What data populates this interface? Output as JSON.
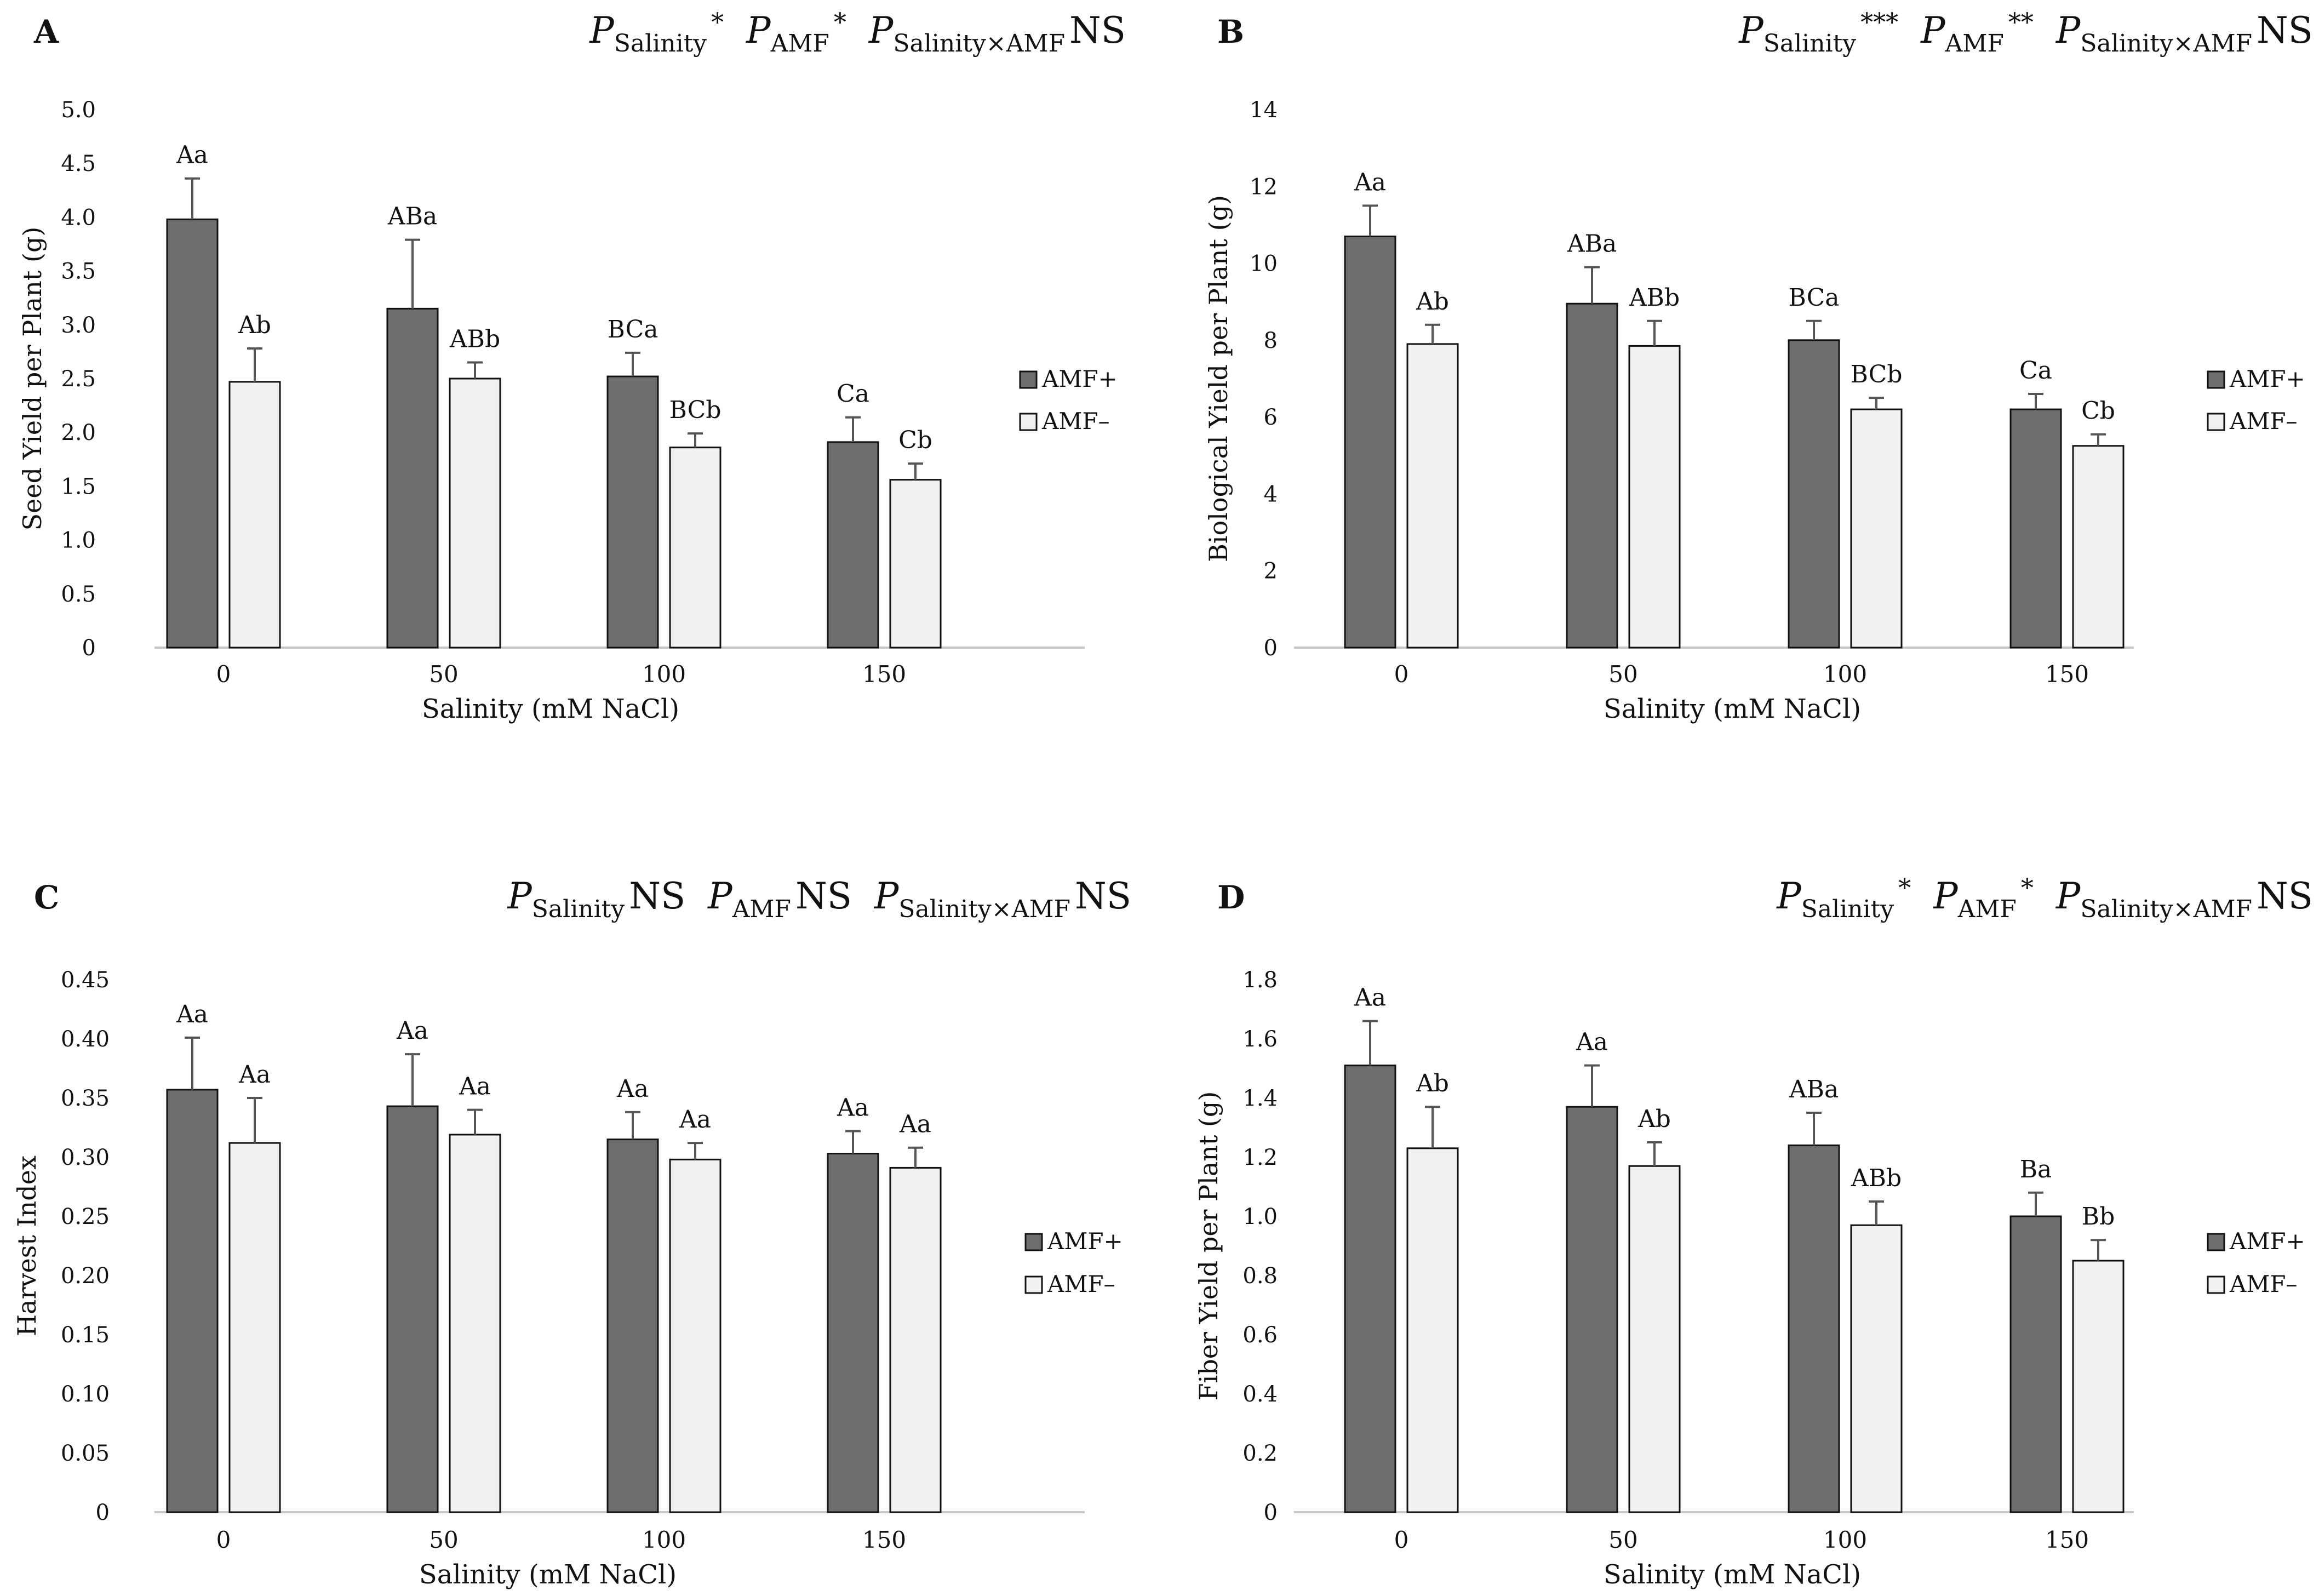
{
  "x_axis_title": "Salinity (mM NaCl)",
  "series_names": [
    "AMF+",
    "AMF–"
  ],
  "colors": {
    "amf_plus": "#6e6e6e",
    "amf_minus": "#f1f1f1",
    "bar_stroke": "#111111",
    "axis": "#c8c8c8",
    "error": "#555555"
  },
  "chart_data": [
    {
      "panel": "A",
      "type": "bar",
      "stats": [
        {
          "base": "P",
          "sub": "Salinity",
          "sig": "*"
        },
        {
          "base": "P",
          "sub": "AMF",
          "sig": "*"
        },
        {
          "base": "P",
          "sub": "Salinity×AMF",
          "sig": "NS"
        }
      ],
      "ylabel": "Seed Yield per Plant (g)",
      "xlabel": "Salinity (mM NaCl)",
      "categories": [
        "0",
        "50",
        "100",
        "150"
      ],
      "ylim": [
        0,
        5.0
      ],
      "yticks": [
        "0",
        "0.5",
        "1.0",
        "1.5",
        "2.0",
        "2.5",
        "3.0",
        "3.5",
        "4.0",
        "4.5",
        "5.0"
      ],
      "yticks_values": [
        0,
        0.5,
        1.0,
        1.5,
        2.0,
        2.5,
        3.0,
        3.5,
        4.0,
        4.5,
        5.0
      ],
      "grid": false,
      "legend": "right",
      "series": [
        {
          "name": "AMF+",
          "values": [
            3.98,
            3.15,
            2.52,
            1.91
          ],
          "errors": [
            0.38,
            0.64,
            0.22,
            0.23
          ],
          "labels": [
            "Aa",
            "ABa",
            "BCa",
            "Ca"
          ]
        },
        {
          "name": "AMF–",
          "values": [
            2.47,
            2.5,
            1.86,
            1.56
          ],
          "errors": [
            0.31,
            0.15,
            0.13,
            0.15
          ],
          "labels": [
            "Ab",
            "ABb",
            "BCb",
            "Cb"
          ]
        }
      ]
    },
    {
      "panel": "B",
      "type": "bar",
      "stats": [
        {
          "base": "P",
          "sub": "Salinity",
          "sig": "***"
        },
        {
          "base": "P",
          "sub": "AMF",
          "sig": "**"
        },
        {
          "base": "P",
          "sub": "Salinity×AMF",
          "sig": "NS"
        }
      ],
      "ylabel": "Biological Yield per Plant (g)",
      "xlabel": "Salinity (mM NaCl)",
      "categories": [
        "0",
        "50",
        "100",
        "150"
      ],
      "ylim": [
        0,
        14
      ],
      "yticks": [
        "0",
        "2",
        "4",
        "6",
        "8",
        "10",
        "12",
        "14"
      ],
      "yticks_values": [
        0,
        2,
        4,
        6,
        8,
        10,
        12,
        14
      ],
      "grid": false,
      "legend": "right",
      "series": [
        {
          "name": "AMF+",
          "values": [
            10.7,
            8.95,
            8.0,
            6.2
          ],
          "errors": [
            0.8,
            0.95,
            0.5,
            0.4
          ],
          "labels": [
            "Aa",
            "ABa",
            "BCa",
            "Ca"
          ]
        },
        {
          "name": "AMF–",
          "values": [
            7.9,
            7.85,
            6.2,
            5.25
          ],
          "errors": [
            0.5,
            0.65,
            0.3,
            0.3
          ],
          "labels": [
            "Ab",
            "ABb",
            "BCb",
            "Cb"
          ]
        }
      ]
    },
    {
      "panel": "C",
      "type": "bar",
      "stats": [
        {
          "base": "P",
          "sub": "Salinity",
          "sig": "NS"
        },
        {
          "base": "P",
          "sub": "AMF",
          "sig": "NS"
        },
        {
          "base": "P",
          "sub": "Salinity×AMF",
          "sig": "NS"
        }
      ],
      "ylabel": "Harvest Index",
      "xlabel": "Salinity (mM NaCl)",
      "categories": [
        "0",
        "50",
        "100",
        "150"
      ],
      "ylim": [
        0,
        0.45
      ],
      "yticks": [
        "0",
        "0.05",
        "0.10",
        "0.15",
        "0.20",
        "0.25",
        "0.30",
        "0.35",
        "0.40",
        "0.45"
      ],
      "yticks_values": [
        0,
        0.05,
        0.1,
        0.15,
        0.2,
        0.25,
        0.3,
        0.35,
        0.4,
        0.45
      ],
      "grid": false,
      "legend": "right",
      "series": [
        {
          "name": "AMF+",
          "values": [
            0.357,
            0.343,
            0.315,
            0.303
          ],
          "errors": [
            0.044,
            0.044,
            0.023,
            0.019
          ],
          "labels": [
            "Aa",
            "Aa",
            "Aa",
            "Aa"
          ]
        },
        {
          "name": "AMF–",
          "values": [
            0.312,
            0.319,
            0.298,
            0.291
          ],
          "errors": [
            0.038,
            0.021,
            0.014,
            0.017
          ],
          "labels": [
            "Aa",
            "Aa",
            "Aa",
            "Aa"
          ]
        }
      ]
    },
    {
      "panel": "D",
      "type": "bar",
      "stats": [
        {
          "base": "P",
          "sub": "Salinity",
          "sig": "*"
        },
        {
          "base": "P",
          "sub": "AMF",
          "sig": "*"
        },
        {
          "base": "P",
          "sub": "Salinity×AMF",
          "sig": "NS"
        }
      ],
      "ylabel": "Fiber Yield per Plant (g)",
      "xlabel": "Salinity (mM NaCl)",
      "categories": [
        "0",
        "50",
        "100",
        "150"
      ],
      "ylim": [
        0,
        1.8
      ],
      "yticks": [
        "0",
        "0.2",
        "0.4",
        "0.6",
        "0.8",
        "1.0",
        "1.2",
        "1.4",
        "1.6",
        "1.8"
      ],
      "yticks_values": [
        0,
        0.2,
        0.4,
        0.6,
        0.8,
        1.0,
        1.2,
        1.4,
        1.6,
        1.8
      ],
      "grid": false,
      "legend": "right",
      "series": [
        {
          "name": "AMF+",
          "values": [
            1.51,
            1.37,
            1.24,
            1.0
          ],
          "errors": [
            0.15,
            0.14,
            0.11,
            0.08
          ],
          "labels": [
            "Aa",
            "Aa",
            "ABa",
            "Ba"
          ]
        },
        {
          "name": "AMF–",
          "values": [
            1.23,
            1.17,
            0.97,
            0.85
          ],
          "errors": [
            0.14,
            0.08,
            0.08,
            0.07
          ],
          "labels": [
            "Ab",
            "Ab",
            "ABb",
            "Bb"
          ]
        }
      ]
    }
  ]
}
